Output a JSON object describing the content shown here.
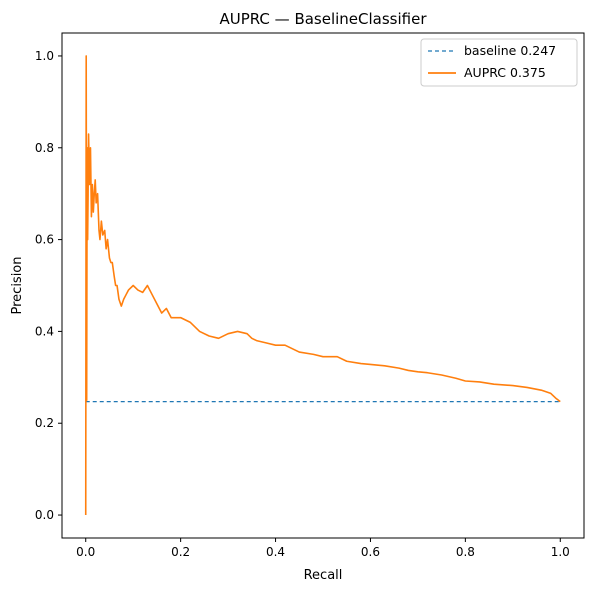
{
  "chart_data": {
    "type": "line",
    "title": "AUPRC — BaselineClassifier",
    "xlabel": "Recall",
    "ylabel": "Precision",
    "xlim": [
      -0.05,
      1.05
    ],
    "ylim": [
      -0.05,
      1.05
    ],
    "xticks": [
      0.0,
      0.2,
      0.4,
      0.6,
      0.8,
      1.0
    ],
    "xtick_labels": [
      "0.0",
      "0.2",
      "0.4",
      "0.6",
      "0.8",
      "1.0"
    ],
    "yticks": [
      0.0,
      0.2,
      0.4,
      0.6,
      0.8,
      1.0
    ],
    "ytick_labels": [
      "0.0",
      "0.2",
      "0.4",
      "0.6",
      "0.8",
      "1.0"
    ],
    "grid": false,
    "legend_position": "top-right",
    "series": [
      {
        "name": "baseline 0.247",
        "style": "dashed",
        "color": "#1f77b4",
        "x": [
          0.0,
          1.0
        ],
        "y": [
          0.247,
          0.247
        ]
      },
      {
        "name": "AUPRC 0.375",
        "style": "solid",
        "color": "#ff7f0e",
        "x": [
          0.0,
          0.001,
          0.002,
          0.003,
          0.004,
          0.005,
          0.006,
          0.008,
          0.01,
          0.012,
          0.014,
          0.016,
          0.018,
          0.02,
          0.022,
          0.025,
          0.028,
          0.03,
          0.033,
          0.036,
          0.04,
          0.043,
          0.046,
          0.05,
          0.053,
          0.056,
          0.06,
          0.063,
          0.066,
          0.07,
          0.075,
          0.08,
          0.085,
          0.09,
          0.1,
          0.11,
          0.12,
          0.13,
          0.14,
          0.15,
          0.16,
          0.17,
          0.18,
          0.19,
          0.2,
          0.22,
          0.24,
          0.26,
          0.28,
          0.3,
          0.32,
          0.34,
          0.35,
          0.36,
          0.38,
          0.4,
          0.42,
          0.45,
          0.48,
          0.5,
          0.53,
          0.55,
          0.58,
          0.6,
          0.63,
          0.66,
          0.68,
          0.7,
          0.72,
          0.75,
          0.78,
          0.8,
          0.83,
          0.86,
          0.9,
          0.93,
          0.96,
          0.98,
          0.99,
          1.0
        ],
        "y": [
          0.0,
          1.0,
          0.25,
          0.8,
          0.6,
          0.7,
          0.83,
          0.72,
          0.8,
          0.65,
          0.72,
          0.66,
          0.7,
          0.73,
          0.68,
          0.7,
          0.62,
          0.6,
          0.64,
          0.61,
          0.62,
          0.58,
          0.6,
          0.56,
          0.55,
          0.55,
          0.52,
          0.5,
          0.5,
          0.47,
          0.455,
          0.47,
          0.48,
          0.49,
          0.5,
          0.49,
          0.485,
          0.5,
          0.48,
          0.46,
          0.44,
          0.45,
          0.43,
          0.43,
          0.43,
          0.42,
          0.4,
          0.39,
          0.385,
          0.395,
          0.4,
          0.395,
          0.385,
          0.38,
          0.375,
          0.37,
          0.37,
          0.355,
          0.35,
          0.345,
          0.345,
          0.335,
          0.33,
          0.328,
          0.325,
          0.32,
          0.315,
          0.312,
          0.31,
          0.305,
          0.298,
          0.292,
          0.29,
          0.285,
          0.282,
          0.278,
          0.272,
          0.265,
          0.255,
          0.247
        ]
      }
    ]
  }
}
